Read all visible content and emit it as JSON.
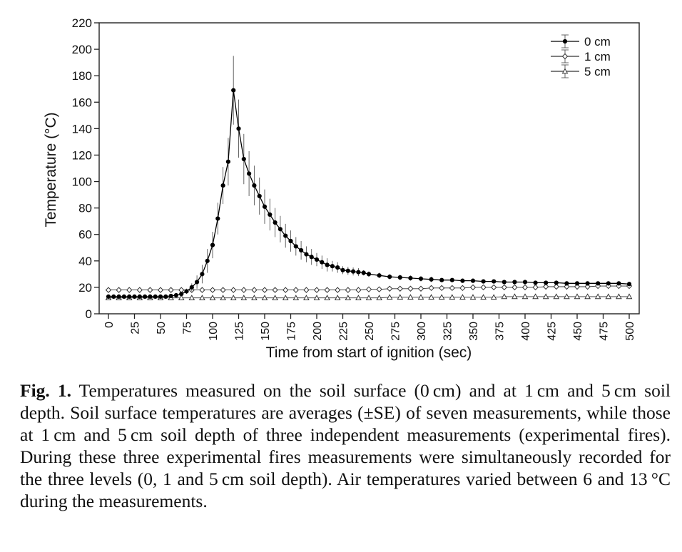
{
  "figure": {
    "label": "Fig. 1.",
    "caption": "Temperatures measured on the soil surface (0 cm) and at 1 cm and 5 cm soil depth. Soil surface temperatures are averages (±SE) of seven measurements, while those at 1 cm and 5 cm soil depth of three independent measurements (experimental fires). During these three experimental fires measurements were simultaneously recorded for the three levels (0, 1 and 5 cm soil depth). Air temperatures varied between 6 and 13 °C during the measurements."
  },
  "chart_data": {
    "type": "line",
    "title": "",
    "xlabel": "Time from start of ignition (sec)",
    "ylabel": "Temperature (°C)",
    "xlim": [
      0,
      500
    ],
    "ylim": [
      0,
      220
    ],
    "xticks": [
      0,
      25,
      50,
      75,
      100,
      125,
      150,
      175,
      200,
      225,
      250,
      275,
      300,
      325,
      350,
      375,
      400,
      425,
      450,
      475,
      500
    ],
    "yticks": [
      0,
      20,
      40,
      60,
      80,
      100,
      120,
      140,
      160,
      180,
      200,
      220
    ],
    "grid": false,
    "legend_position": "top-right",
    "series": [
      {
        "name": "0 cm",
        "marker": "filled-circle",
        "color": "#000000",
        "x": [
          0,
          5,
          10,
          15,
          20,
          25,
          30,
          35,
          40,
          45,
          50,
          55,
          60,
          65,
          70,
          75,
          80,
          85,
          90,
          95,
          100,
          105,
          110,
          115,
          120,
          125,
          130,
          135,
          140,
          145,
          150,
          155,
          160,
          165,
          170,
          175,
          180,
          185,
          190,
          195,
          200,
          205,
          210,
          215,
          220,
          225,
          230,
          235,
          240,
          245,
          250,
          260,
          270,
          280,
          290,
          300,
          310,
          320,
          330,
          340,
          350,
          360,
          370,
          380,
          390,
          400,
          410,
          420,
          430,
          440,
          450,
          460,
          470,
          480,
          490,
          500
        ],
        "y": [
          13,
          13,
          13,
          13,
          13,
          13,
          13,
          13,
          13,
          13,
          13,
          13,
          13.5,
          14,
          15,
          17,
          20,
          24,
          30,
          40,
          52,
          72,
          97,
          115,
          169,
          140,
          117,
          106,
          97,
          89,
          81,
          75,
          69,
          64,
          59,
          55,
          51,
          48,
          45,
          43,
          41,
          39,
          37,
          36,
          35,
          33,
          32.5,
          32,
          31.5,
          31,
          30,
          29,
          28,
          27.5,
          27,
          26.5,
          26,
          25.5,
          25.5,
          25,
          25,
          24.5,
          24.5,
          24,
          24,
          24,
          23.5,
          23.5,
          23.5,
          23,
          23,
          23,
          23,
          23,
          23,
          22.5
        ],
        "error": [
          0,
          0,
          0,
          0,
          0,
          0,
          0,
          0,
          0,
          0,
          0,
          0,
          0,
          0,
          1,
          2,
          3,
          5,
          7,
          9,
          10,
          12,
          14,
          18,
          26,
          22,
          19,
          17,
          15,
          14,
          13,
          12,
          11,
          10,
          9,
          8,
          7,
          7,
          6,
          6,
          5,
          5,
          5,
          4,
          4,
          3,
          3,
          3,
          3,
          2,
          2,
          2,
          2,
          2,
          2,
          2,
          2,
          1,
          1,
          1,
          1,
          1,
          1,
          1,
          1,
          1,
          1,
          1,
          1,
          1,
          1,
          1,
          1,
          1,
          1,
          1
        ]
      },
      {
        "name": "1 cm",
        "marker": "open-diamond",
        "color": "#333333",
        "x": [
          0,
          10,
          20,
          30,
          40,
          50,
          60,
          70,
          80,
          90,
          100,
          110,
          120,
          130,
          140,
          150,
          160,
          170,
          180,
          190,
          200,
          210,
          220,
          230,
          240,
          250,
          260,
          270,
          280,
          290,
          300,
          310,
          320,
          330,
          340,
          350,
          360,
          370,
          380,
          390,
          400,
          410,
          420,
          430,
          440,
          450,
          460,
          470,
          480,
          490,
          500
        ],
        "y": [
          18,
          18,
          18,
          18,
          18,
          18,
          18,
          18,
          18,
          18,
          18,
          18,
          18,
          18,
          18,
          18,
          18,
          18,
          18,
          18,
          18,
          18,
          18,
          18,
          18,
          18.5,
          18.5,
          19,
          19,
          19,
          19,
          19.5,
          19.5,
          19.5,
          19.5,
          20,
          20,
          20,
          20,
          20,
          20,
          20,
          20.5,
          20.5,
          20.5,
          20.5,
          20.5,
          21,
          21,
          21,
          21
        ],
        "error": [
          1.5,
          1.5,
          1.5,
          1.5,
          1.5,
          1.5,
          1.5,
          1.5,
          1.5,
          1.5,
          1.5,
          1.5,
          1.5,
          1.5,
          1.5,
          1.5,
          1.5,
          1.5,
          1.5,
          1.5,
          1.5,
          1.5,
          1.5,
          1.5,
          1.5,
          1.5,
          1.5,
          1.5,
          1.5,
          1.5,
          1.5,
          1.5,
          1.5,
          1.5,
          1.5,
          1.5,
          1.5,
          1.5,
          1.5,
          1.5,
          1.5,
          1.5,
          1.5,
          1.5,
          1.5,
          1.5,
          1.5,
          1.5,
          1.5,
          1.5,
          1.5
        ]
      },
      {
        "name": "5 cm",
        "marker": "open-triangle",
        "color": "#333333",
        "x": [
          0,
          10,
          20,
          30,
          40,
          50,
          60,
          70,
          80,
          90,
          100,
          110,
          120,
          130,
          140,
          150,
          160,
          170,
          180,
          190,
          200,
          210,
          220,
          230,
          240,
          250,
          260,
          270,
          280,
          290,
          300,
          310,
          320,
          330,
          340,
          350,
          360,
          370,
          380,
          390,
          400,
          410,
          420,
          430,
          440,
          450,
          460,
          470,
          480,
          490,
          500
        ],
        "y": [
          12,
          12,
          12,
          12,
          12,
          12,
          12,
          12,
          12,
          12,
          12,
          12,
          12,
          12,
          12,
          12,
          12,
          12,
          12,
          12,
          12,
          12,
          12,
          12,
          12,
          12,
          12,
          12.5,
          12.5,
          12.5,
          12.5,
          12.5,
          12.5,
          12.5,
          12.5,
          12.5,
          12.5,
          12.5,
          13,
          13,
          13,
          13,
          13,
          13,
          13,
          13,
          13,
          13,
          13,
          13,
          13
        ],
        "error": [
          1,
          1,
          1,
          1,
          1,
          1,
          1,
          1,
          1,
          1,
          1,
          1,
          1,
          1,
          1,
          1,
          1,
          1,
          1,
          1,
          1,
          1,
          1,
          1,
          1,
          1,
          1,
          1,
          1,
          1,
          1,
          1,
          1,
          1,
          1,
          1,
          1,
          1,
          1,
          1,
          1,
          1,
          1,
          1,
          1,
          1,
          1,
          1,
          1,
          1,
          1
        ]
      }
    ]
  }
}
